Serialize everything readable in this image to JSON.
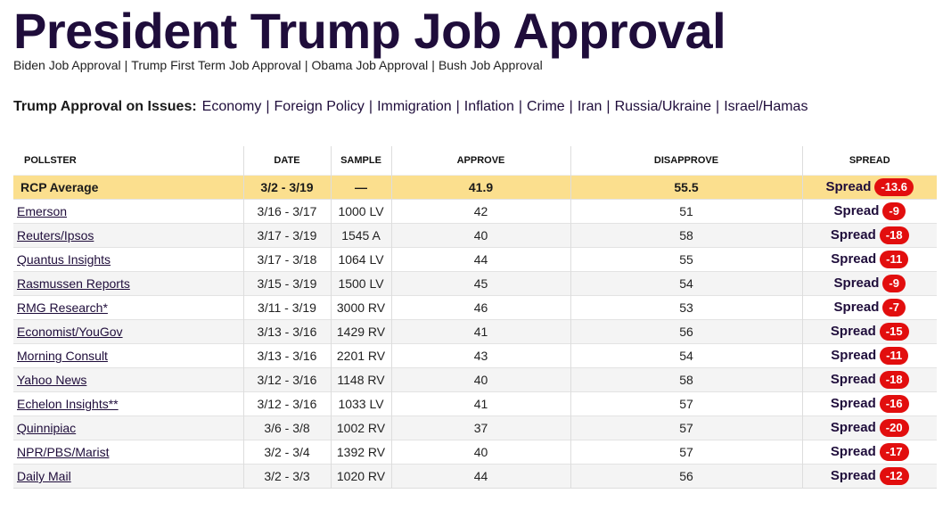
{
  "page": {
    "title": "President Trump Job Approval"
  },
  "related_links": [
    "Biden Job Approval",
    "Trump First Term Job Approval",
    "Obama Job Approval",
    "Bush Job Approval"
  ],
  "issues": {
    "label": "Trump Approval on Issues:",
    "items": [
      "Economy",
      "Foreign Policy",
      "Immigration",
      "Inflation",
      "Crime",
      "Iran",
      "Russia/Ukraine",
      "Israel/Hamas"
    ]
  },
  "table": {
    "headers": {
      "pollster": "POLLSTER",
      "date": "DATE",
      "sample": "SAMPLE",
      "approve": "APPROVE",
      "disapprove": "DISAPPROVE",
      "spread": "SPREAD"
    },
    "spread_label": "Spread",
    "average": {
      "pollster": "RCP Average",
      "date": "3/2 - 3/19",
      "sample": "—",
      "approve": "41.9",
      "disapprove": "55.5",
      "spread": "-13.6"
    },
    "rows": [
      {
        "pollster": "Emerson",
        "date": "3/16 - 3/17",
        "sample": "1000 LV",
        "approve": "42",
        "disapprove": "51",
        "spread": "-9"
      },
      {
        "pollster": "Reuters/Ipsos",
        "date": "3/17 - 3/19",
        "sample": "1545 A",
        "approve": "40",
        "disapprove": "58",
        "spread": "-18"
      },
      {
        "pollster": "Quantus Insights",
        "date": "3/17 - 3/18",
        "sample": "1064 LV",
        "approve": "44",
        "disapprove": "55",
        "spread": "-11"
      },
      {
        "pollster": "Rasmussen Reports",
        "date": "3/15 - 3/19",
        "sample": "1500 LV",
        "approve": "45",
        "disapprove": "54",
        "spread": "-9"
      },
      {
        "pollster": "RMG Research*",
        "date": "3/11 - 3/19",
        "sample": "3000 RV",
        "approve": "46",
        "disapprove": "53",
        "spread": "-7"
      },
      {
        "pollster": "Economist/YouGov",
        "date": "3/13 - 3/16",
        "sample": "1429 RV",
        "approve": "41",
        "disapprove": "56",
        "spread": "-15"
      },
      {
        "pollster": "Morning Consult",
        "date": "3/13 - 3/16",
        "sample": "2201 RV",
        "approve": "43",
        "disapprove": "54",
        "spread": "-11"
      },
      {
        "pollster": "Yahoo News",
        "date": "3/12 - 3/16",
        "sample": "1148 RV",
        "approve": "40",
        "disapprove": "58",
        "spread": "-18"
      },
      {
        "pollster": "Echelon Insights**",
        "date": "3/12 - 3/16",
        "sample": "1033 LV",
        "approve": "41",
        "disapprove": "57",
        "spread": "-16"
      },
      {
        "pollster": "Quinnipiac",
        "date": "3/6 - 3/8",
        "sample": "1002 RV",
        "approve": "37",
        "disapprove": "57",
        "spread": "-20"
      },
      {
        "pollster": "NPR/PBS/Marist",
        "date": "3/2 - 3/4",
        "sample": "1392 RV",
        "approve": "40",
        "disapprove": "57",
        "spread": "-17"
      },
      {
        "pollster": "Daily Mail",
        "date": "3/2 - 3/3",
        "sample": "1020 RV",
        "approve": "44",
        "disapprove": "56",
        "spread": "-12"
      }
    ]
  }
}
